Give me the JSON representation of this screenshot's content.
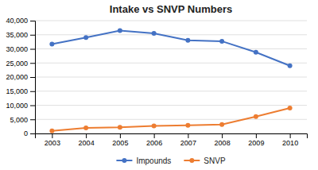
{
  "chart_data": {
    "type": "line",
    "title": "Intake vs SNVP Numbers",
    "x": [
      2003,
      2004,
      2005,
      2006,
      2007,
      2008,
      2009,
      2010
    ],
    "series": [
      {
        "name": "Impounds",
        "color": "#4472C4",
        "marker": "circle",
        "values": [
          31700,
          34000,
          36500,
          35500,
          33000,
          32700,
          28800,
          24000
        ]
      },
      {
        "name": "SNVP",
        "color": "#ED7D31",
        "marker": "circle",
        "values": [
          900,
          2000,
          2200,
          2700,
          2900,
          3200,
          6000,
          9000
        ]
      }
    ],
    "xlim": [
      2002.5,
      2010.5
    ],
    "xticks": [
      2003,
      2004,
      2005,
      2006,
      2007,
      2008,
      2009,
      2010
    ],
    "ylim": [
      0,
      40000
    ],
    "yticks": [
      0,
      {
        "value": 5000,
        "label": "5,000"
      },
      {
        "value": 10000,
        "label": "10,000"
      },
      {
        "value": 15000,
        "label": "15,000"
      },
      {
        "value": 20000,
        "label": "20,000"
      },
      {
        "value": 25000,
        "label": "25,000"
      },
      {
        "value": 30000,
        "label": "30,000"
      },
      {
        "value": 35000,
        "label": "35,000"
      },
      {
        "value": 40000,
        "label": "40,000"
      }
    ],
    "grid": true,
    "legend": "bottom"
  }
}
